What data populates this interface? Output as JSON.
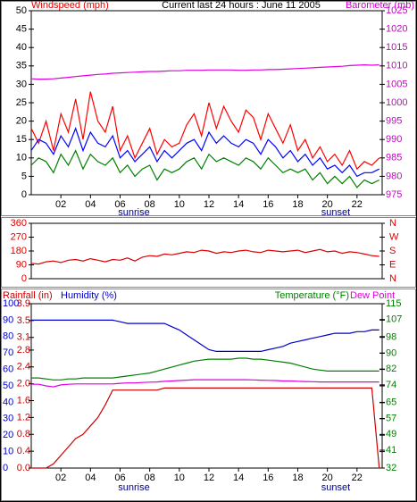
{
  "chart_data": [
    {
      "type": "line",
      "title": "Current last 24 hours : June 11 2005",
      "ylabel": "Windspeed (mph)",
      "y2label": "Barometer (mb)",
      "x": [
        0,
        0.5,
        1,
        1.5,
        2,
        2.5,
        3,
        3.5,
        4,
        4.5,
        5,
        5.5,
        6,
        6.5,
        7,
        7.5,
        8,
        8.5,
        9,
        9.5,
        10,
        10.5,
        11,
        11.5,
        12,
        12.5,
        13,
        13.5,
        14,
        14.5,
        15,
        15.5,
        16,
        16.5,
        17,
        17.5,
        18,
        18.5,
        19,
        19.5,
        20,
        20.5,
        21,
        21.5,
        22,
        22.5,
        23,
        23.5
      ],
      "xlim": [
        0,
        23.7
      ],
      "xticks": [
        {
          "value": 2,
          "label": "02"
        },
        {
          "value": 4,
          "label": "04"
        },
        {
          "value": 6,
          "label": "06"
        },
        {
          "value": 8,
          "label": "08"
        },
        10,
        12,
        14,
        16,
        18,
        20,
        22
      ],
      "ylim": [
        0,
        50
      ],
      "yticks": [
        0,
        5,
        10,
        15,
        20,
        25,
        30,
        35,
        40,
        45,
        50
      ],
      "y2lim": [
        975,
        1025
      ],
      "y2ticks": [
        975,
        980,
        985,
        990,
        995,
        1000,
        1005,
        1010,
        1015,
        1020,
        1025
      ],
      "series": [
        {
          "color": "#ff0000",
          "values": [
            18,
            14,
            20,
            12,
            22,
            17,
            26,
            15,
            28,
            20,
            17,
            24,
            12,
            16,
            10,
            14,
            18,
            11,
            15,
            13,
            14,
            19,
            22,
            16,
            25,
            18,
            24,
            20,
            17,
            23,
            21,
            15,
            22,
            18,
            14,
            19,
            12,
            15,
            10,
            13,
            9,
            11,
            8,
            12,
            7,
            9,
            8,
            10
          ]
        },
        {
          "color": "#0000ff",
          "values": [
            12,
            15,
            14,
            11,
            16,
            13,
            18,
            12,
            17,
            14,
            13,
            16,
            10,
            12,
            9,
            11,
            13,
            9,
            12,
            10,
            12,
            14,
            15,
            12,
            17,
            14,
            16,
            14,
            13,
            15,
            14,
            11,
            15,
            13,
            10,
            12,
            9,
            11,
            8,
            10,
            7,
            8,
            6,
            8,
            5,
            6,
            6,
            7
          ]
        },
        {
          "color": "#008000",
          "values": [
            8,
            10,
            9,
            6,
            11,
            8,
            12,
            7,
            11,
            9,
            8,
            10,
            6,
            8,
            5,
            7,
            8,
            4,
            7,
            6,
            7,
            9,
            10,
            7,
            11,
            9,
            10,
            9,
            8,
            10,
            9,
            7,
            10,
            8,
            6,
            7,
            6,
            7,
            4,
            6,
            3,
            5,
            3,
            5,
            2,
            4,
            3,
            4
          ]
        },
        {
          "color": "#e000e0",
          "axis": "y2",
          "values": [
            1006.5,
            1006.4,
            1006.4,
            1006.5,
            1006.7,
            1006.9,
            1007.1,
            1007.3,
            1007.5,
            1007.7,
            1007.8,
            1008.0,
            1008.1,
            1008.2,
            1008.3,
            1008.4,
            1008.5,
            1008.5,
            1008.6,
            1008.7,
            1008.7,
            1008.8,
            1008.8,
            1008.8,
            1008.9,
            1008.9,
            1008.9,
            1008.9,
            1008.8,
            1008.8,
            1008.9,
            1008.9,
            1009.0,
            1009.0,
            1009.1,
            1009.2,
            1009.3,
            1009.4,
            1009.5,
            1009.6,
            1009.7,
            1009.8,
            1009.9,
            1010.1,
            1010.2,
            1010.3,
            1010.2,
            1010.3
          ]
        }
      ],
      "annotations": [
        "sunrise",
        "sunset"
      ]
    },
    {
      "type": "line",
      "x": [
        0,
        0.5,
        1,
        1.5,
        2,
        2.5,
        3,
        3.5,
        4,
        4.5,
        5,
        5.5,
        6,
        6.5,
        7,
        7.5,
        8,
        8.5,
        9,
        9.5,
        10,
        10.5,
        11,
        11.5,
        12,
        12.5,
        13,
        13.5,
        14,
        14.5,
        15,
        15.5,
        16,
        16.5,
        17,
        17.5,
        18,
        18.5,
        19,
        19.5,
        20,
        20.5,
        21,
        21.5,
        22,
        22.5,
        23,
        23.5
      ],
      "xlim": [
        0,
        23.7
      ],
      "ylim": [
        0,
        360
      ],
      "yticks": [
        0,
        90,
        180,
        270,
        360
      ],
      "y2lim": [
        0,
        360
      ],
      "y2ticks": [
        {
          "value": 0,
          "label": "N"
        },
        {
          "value": 90,
          "label": "E"
        },
        {
          "value": 180,
          "label": "S"
        },
        {
          "value": 270,
          "label": "W"
        },
        {
          "value": 360,
          "label": "N"
        }
      ],
      "series": [
        {
          "color": "#dd0000",
          "values": [
            100,
            95,
            110,
            115,
            105,
            120,
            125,
            115,
            130,
            120,
            110,
            125,
            120,
            135,
            115,
            140,
            150,
            145,
            160,
            155,
            165,
            175,
            170,
            185,
            180,
            165,
            175,
            170,
            180,
            185,
            175,
            170,
            185,
            180,
            175,
            180,
            185,
            170,
            180,
            190,
            175,
            180,
            165,
            175,
            170,
            160,
            150,
            145
          ]
        }
      ]
    },
    {
      "type": "line",
      "x": [
        0,
        0.5,
        1,
        1.5,
        2,
        2.5,
        3,
        3.5,
        4,
        4.5,
        5,
        5.5,
        6,
        6.5,
        7,
        7.5,
        8,
        8.5,
        9,
        9.5,
        10,
        10.5,
        11,
        11.5,
        12,
        12.5,
        13,
        13.5,
        14,
        14.5,
        15,
        15.5,
        16,
        16.5,
        17,
        17.5,
        18,
        18.5,
        19,
        19.5,
        20,
        20.5,
        21,
        21.5,
        22,
        22.5,
        23,
        23.5
      ],
      "xlim": [
        0,
        23.7
      ],
      "xticks": [
        {
          "value": 2,
          "label": "02"
        },
        {
          "value": 4,
          "label": "04"
        },
        {
          "value": 6,
          "label": "06"
        },
        {
          "value": 8,
          "label": "08"
        },
        10,
        12,
        14,
        16,
        18,
        20,
        22
      ],
      "ylim": [
        0,
        100
      ],
      "yticks": [
        0,
        10,
        20,
        30,
        40,
        50,
        60,
        70,
        80,
        90,
        100
      ],
      "y2lim": [
        32,
        115
      ],
      "y2ticks": [
        32,
        41,
        49,
        57,
        65,
        74,
        82,
        90,
        98,
        107,
        115
      ],
      "y3lim": [
        0,
        3.9
      ],
      "y3ticks": [
        {
          "value": 0,
          "label": "0.0"
        },
        0.4,
        0.8,
        1.2,
        1.6,
        {
          "value": 2,
          "label": "2.0"
        },
        2.4,
        2.8,
        3.1,
        3.5,
        3.9
      ],
      "series": [
        {
          "name": "Rainfall (in)",
          "color": "#cc0000",
          "axis": "y3",
          "values": [
            0,
            0,
            0,
            0.1,
            0.3,
            0.5,
            0.7,
            0.8,
            1.0,
            1.2,
            1.5,
            1.85,
            1.85,
            1.85,
            1.85,
            1.85,
            1.85,
            1.85,
            1.9,
            1.9,
            1.9,
            1.9,
            1.9,
            1.9,
            1.9,
            1.9,
            1.9,
            1.9,
            1.9,
            1.9,
            1.9,
            1.9,
            1.9,
            1.9,
            1.9,
            1.9,
            1.9,
            1.9,
            1.9,
            1.9,
            1.9,
            1.9,
            1.9,
            1.9,
            1.9,
            1.9,
            1.9,
            0
          ]
        },
        {
          "name": "Humidity (%)",
          "color": "#0000cc",
          "values": [
            90,
            90,
            90,
            90,
            90,
            90,
            90,
            90,
            90,
            90,
            90,
            90,
            89,
            88,
            88,
            88,
            88,
            88,
            88,
            86,
            84,
            81,
            78,
            75,
            72,
            71,
            71,
            71,
            71,
            71,
            71,
            71,
            72,
            73,
            74,
            76,
            77,
            78,
            79,
            80,
            81,
            82,
            82,
            82,
            83,
            83,
            84,
            84
          ]
        },
        {
          "name": "Temperature (°F)",
          "color": "#008000",
          "axis": "y2",
          "values": [
            77.5,
            77.5,
            77,
            76.5,
            76.5,
            77,
            77,
            77.5,
            77.5,
            77.5,
            77.5,
            77.5,
            78,
            78.5,
            79,
            79.5,
            80,
            81,
            82,
            83,
            84,
            85,
            86,
            86.5,
            87,
            87,
            87,
            87,
            87.5,
            87.5,
            87,
            87,
            86.5,
            86,
            85.5,
            85,
            84,
            83,
            82,
            81.5,
            81,
            81,
            81,
            81,
            81,
            81,
            81,
            81
          ]
        },
        {
          "name": "Dew Point",
          "color": "#e000e0",
          "axis": "y2",
          "values": [
            74.3,
            74.3,
            73.5,
            73,
            74,
            74.3,
            74.5,
            74.5,
            74.5,
            74.5,
            74.5,
            74.5,
            74.8,
            75,
            75,
            75.2,
            75.4,
            75.5,
            75.8,
            76,
            76.2,
            76.4,
            76.6,
            76.6,
            76.6,
            76.6,
            76.6,
            76.6,
            76.6,
            76.6,
            76.5,
            76.4,
            76.3,
            76.2,
            76,
            76,
            75.8,
            75.7,
            75.6,
            75.5,
            75.5,
            75.5,
            75.5,
            75.5,
            75.5,
            75.5,
            75.5,
            75.5
          ]
        }
      ],
      "annotations": [
        "sunrise",
        "sunset"
      ]
    }
  ]
}
